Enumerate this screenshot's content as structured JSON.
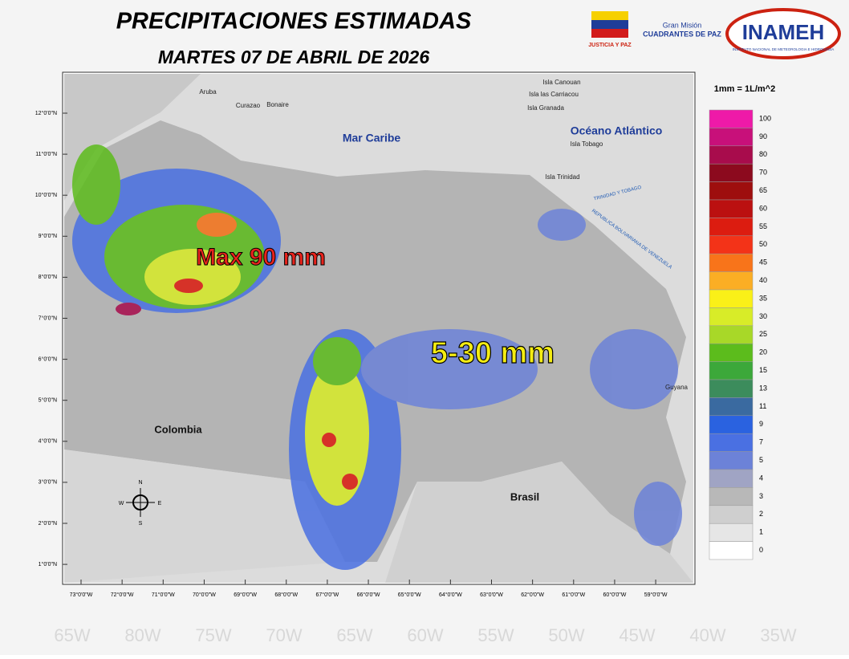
{
  "header": {
    "title": "PRECIPITACIONES ESTIMADAS",
    "date": "MARTES 07 DE ABRIL DE 2026"
  },
  "logos": {
    "justicia": "JUSTICIA Y PAZ",
    "mision_top": "Gran Misión",
    "mision": "CUADRANTES DE PAZ",
    "inameh": "INAMEH",
    "inameh_sub": "INSTITUTO NACIONAL DE METEOROLOGIA E HIDROLOGIA"
  },
  "map": {
    "lat_ticks": [
      "12°0'0\"N",
      "11°0'0\"N",
      "10°0'0\"N",
      "9°0'0\"N",
      "8°0'0\"N",
      "7°0'0\"N",
      "6°0'0\"N",
      "5°0'0\"N",
      "4°0'0\"N",
      "3°0'0\"N",
      "2°0'0\"N",
      "1°0'0\"N"
    ],
    "lon_ticks": [
      "73°0'0\"W",
      "72°0'0\"W",
      "71°0'0\"W",
      "70°0'0\"W",
      "69°0'0\"W",
      "68°0'0\"W",
      "67°0'0\"W",
      "66°0'0\"W",
      "65°0'0\"W",
      "64°0'0\"W",
      "63°0'0\"W",
      "62°0'0\"W",
      "61°0'0\"W",
      "60°0'0\"W",
      "59°0'0\"W"
    ],
    "places": {
      "aruba": "Aruba",
      "curazao": "Curazao",
      "bonaire": "Bonaire",
      "canouan": "Isla Canouan",
      "carriacou": "Isla las Carriacou",
      "granada": "Isla Granada",
      "caribe": "Mar Caribe",
      "atlantico": "Océano Atlántico",
      "tobago": "Isla Tobago",
      "trinidad": "Isla Trinidad",
      "tt": "TRINIDAD Y TOBAGO",
      "rbv": "REPUBLICA BOLIVARIANA DE VENEZUELA",
      "colombia": "Colombia",
      "brasil": "Brasil",
      "guyana": "Guyana"
    },
    "annotations": {
      "max": "Max 90 mm",
      "range": "5-30 mm"
    },
    "compass": {
      "n": "N",
      "s": "S",
      "e": "E",
      "w": "W"
    }
  },
  "legend": {
    "title": "1mm = 1L/m^2",
    "items": [
      {
        "label": 100,
        "color": "#ee1aa8"
      },
      {
        "label": 90,
        "color": "#c8107a"
      },
      {
        "label": 80,
        "color": "#a80c4c"
      },
      {
        "label": 70,
        "color": "#8c0a1e"
      },
      {
        "label": 65,
        "color": "#9e0e0e"
      },
      {
        "label": 60,
        "color": "#bb1010"
      },
      {
        "label": 55,
        "color": "#dc1c10"
      },
      {
        "label": 50,
        "color": "#f33318"
      },
      {
        "label": 45,
        "color": "#f8741a"
      },
      {
        "label": 40,
        "color": "#fbae24"
      },
      {
        "label": 35,
        "color": "#faf018"
      },
      {
        "label": 30,
        "color": "#d8ec28"
      },
      {
        "label": 25,
        "color": "#a8d828"
      },
      {
        "label": 20,
        "color": "#5cbc1c"
      },
      {
        "label": 15,
        "color": "#3ca83a"
      },
      {
        "label": 13,
        "color": "#3c8c5c"
      },
      {
        "label": 11,
        "color": "#3a6aa0"
      },
      {
        "label": 9,
        "color": "#2a62e0"
      },
      {
        "label": 7,
        "color": "#4a70e2"
      },
      {
        "label": 5,
        "color": "#6c82d8"
      },
      {
        "label": 4,
        "color": "#a0a4c4"
      },
      {
        "label": 3,
        "color": "#b8b8b8"
      },
      {
        "label": 2,
        "color": "#cfcfcf"
      },
      {
        "label": 1,
        "color": "#e6e6e6"
      },
      {
        "label": 0,
        "color": "#ffffff"
      }
    ]
  },
  "background_labels": [
    "65W",
    "80W",
    "75W",
    "70W",
    "65W",
    "60W",
    "55W",
    "50W",
    "45W",
    "40W",
    "35W"
  ]
}
